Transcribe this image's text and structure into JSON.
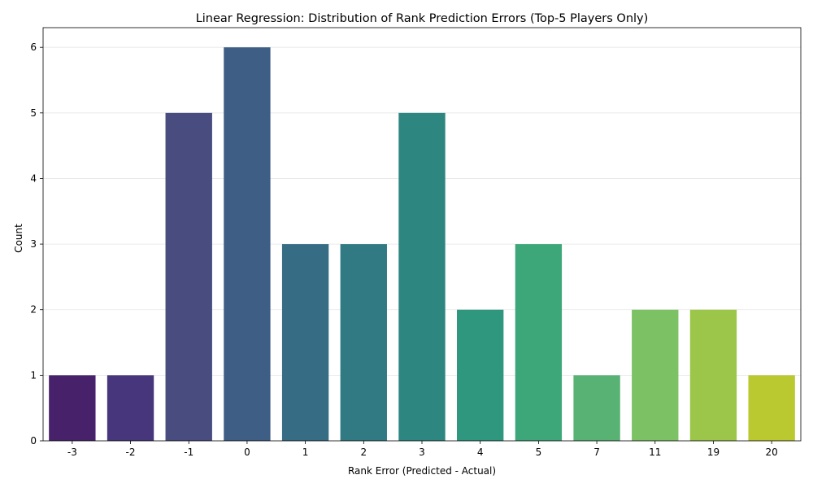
{
  "chart_data": {
    "type": "bar",
    "title": "Linear Regression: Distribution of Rank Prediction Errors (Top-5 Players Only)",
    "xlabel": "Rank Error (Predicted - Actual)",
    "ylabel": "Count",
    "categories": [
      "-3",
      "-2",
      "-1",
      "0",
      "1",
      "2",
      "3",
      "4",
      "5",
      "7",
      "11",
      "19",
      "20"
    ],
    "values": [
      1,
      1,
      5,
      6,
      3,
      3,
      5,
      2,
      3,
      1,
      2,
      2,
      1
    ],
    "colors": [
      "#47216a",
      "#47367c",
      "#484c7f",
      "#3f5e86",
      "#366c84",
      "#317a84",
      "#2e8680",
      "#2f977d",
      "#3ea77a",
      "#58b274",
      "#7cc164",
      "#9bc64a",
      "#b9c92f"
    ],
    "ylim": [
      0,
      6.3
    ],
    "yticks": [
      0,
      1,
      2,
      3,
      4,
      5,
      6
    ],
    "grid": "horizontal"
  }
}
